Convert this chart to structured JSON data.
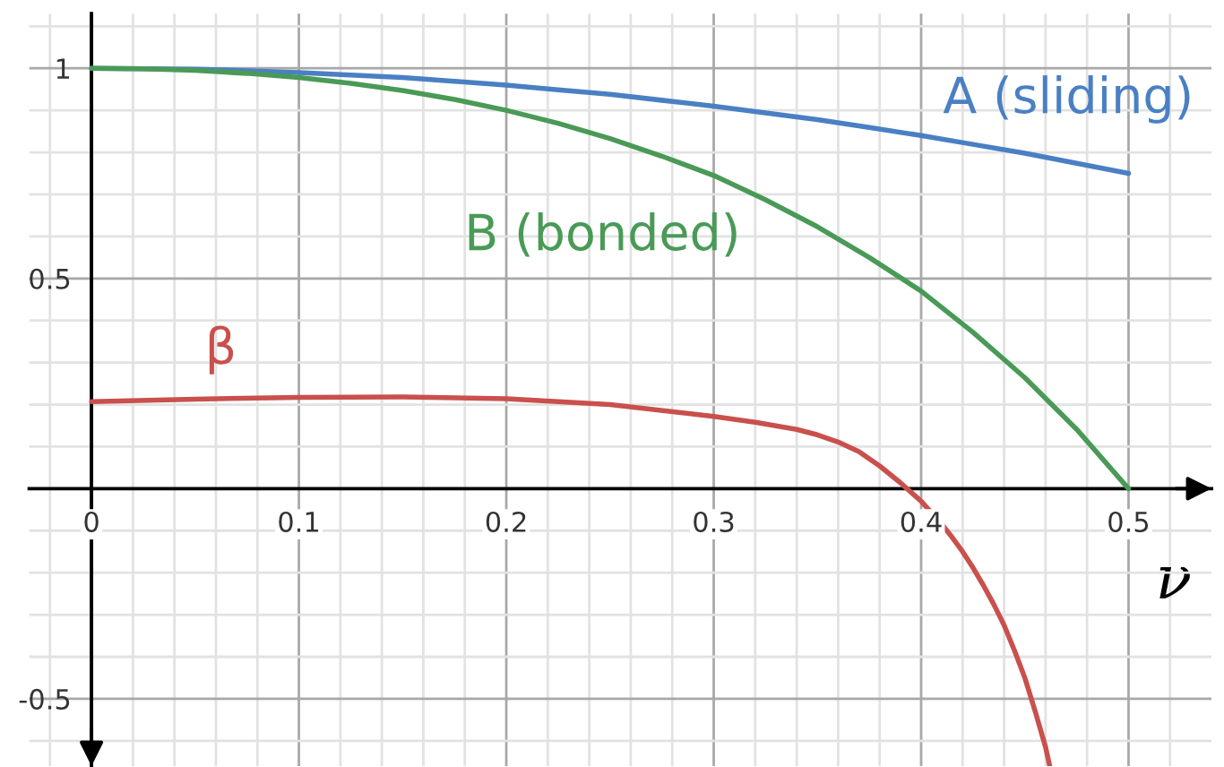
{
  "chart_data": {
    "type": "line",
    "xlabel": "ν",
    "series": [
      {
        "name": "A (sliding)",
        "color": "#4a80c3",
        "x": [
          0,
          0.025,
          0.05,
          0.075,
          0.1,
          0.125,
          0.15,
          0.175,
          0.2,
          0.225,
          0.25,
          0.275,
          0.3,
          0.325,
          0.35,
          0.375,
          0.4,
          0.425,
          0.45,
          0.475,
          0.5
        ],
        "values": [
          1,
          0.999,
          0.998,
          0.994,
          0.99,
          0.984,
          0.978,
          0.969,
          0.96,
          0.949,
          0.938,
          0.924,
          0.91,
          0.894,
          0.878,
          0.859,
          0.84,
          0.819,
          0.798,
          0.774,
          0.75
        ]
      },
      {
        "name": "B (bonded)",
        "color": "#4a9a57",
        "x": [
          0,
          0.025,
          0.05,
          0.075,
          0.1,
          0.125,
          0.15,
          0.175,
          0.2,
          0.225,
          0.25,
          0.275,
          0.3,
          0.325,
          0.35,
          0.375,
          0.4,
          0.425,
          0.45,
          0.475,
          0.5
        ],
        "values": [
          1,
          0.999,
          0.995,
          0.988,
          0.978,
          0.964,
          0.947,
          0.926,
          0.9,
          0.869,
          0.833,
          0.791,
          0.745,
          0.687,
          0.623,
          0.55,
          0.47,
          0.372,
          0.264,
          0.141,
          0
        ]
      },
      {
        "name": "β",
        "color": "#c9504c",
        "x": [
          0,
          0.05,
          0.1,
          0.15,
          0.2,
          0.25,
          0.3,
          0.32,
          0.34,
          0.35,
          0.36,
          0.37,
          0.38,
          0.39,
          0.4,
          0.41,
          0.415,
          0.42,
          0.425,
          0.43,
          0.435,
          0.44,
          0.445,
          0.45,
          0.455,
          0.46,
          0.462
        ],
        "values": [
          0.207,
          0.213,
          0.217,
          0.218,
          0.214,
          0.2,
          0.172,
          0.158,
          0.141,
          0.128,
          0.111,
          0.088,
          0.054,
          0.014,
          -0.03,
          -0.085,
          -0.116,
          -0.15,
          -0.188,
          -0.23,
          -0.275,
          -0.325,
          -0.385,
          -0.45,
          -0.53,
          -0.615,
          -0.66
        ]
      }
    ],
    "xlim": [
      -0.03,
      0.54
    ],
    "ylim": [
      -0.66,
      1.13
    ],
    "xticks": [
      {
        "value": -0.02,
        "label": null
      },
      0,
      {
        "value": 0.02,
        "label": null
      },
      {
        "value": 0.04,
        "label": null
      },
      {
        "value": 0.06,
        "label": null
      },
      {
        "value": 0.08,
        "label": null
      },
      0.1,
      {
        "value": 0.12,
        "label": null
      },
      {
        "value": 0.14,
        "label": null
      },
      {
        "value": 0.16,
        "label": null
      },
      {
        "value": 0.18,
        "label": null
      },
      0.2,
      {
        "value": 0.22,
        "label": null
      },
      {
        "value": 0.24,
        "label": null
      },
      {
        "value": 0.26,
        "label": null
      },
      {
        "value": 0.28,
        "label": null
      },
      0.3,
      {
        "value": 0.32,
        "label": null
      },
      {
        "value": 0.34,
        "label": null
      },
      {
        "value": 0.36,
        "label": null
      },
      {
        "value": 0.38,
        "label": null
      },
      0.4,
      {
        "value": 0.42,
        "label": null
      },
      {
        "value": 0.44,
        "label": null
      },
      {
        "value": 0.46,
        "label": null
      },
      {
        "value": 0.48,
        "label": null
      },
      0.5,
      {
        "value": 0.52,
        "label": null
      }
    ],
    "yticks": [
      {
        "value": -0.6,
        "label": null
      },
      -0.5,
      {
        "value": -0.4,
        "label": null
      },
      {
        "value": -0.3,
        "label": null
      },
      {
        "value": -0.2,
        "label": null
      },
      {
        "value": -0.1,
        "label": null
      },
      {
        "value": 0,
        "label": null
      },
      {
        "value": 0.1,
        "label": null
      },
      {
        "value": 0.2,
        "label": null
      },
      {
        "value": 0.3,
        "label": null
      },
      {
        "value": 0.4,
        "label": null
      },
      0.5,
      {
        "value": 0.6,
        "label": null
      },
      {
        "value": 0.7,
        "label": null
      },
      {
        "value": 0.8,
        "label": null
      },
      {
        "value": 0.9,
        "label": null
      },
      1,
      {
        "value": 1.1,
        "label": null
      }
    ],
    "grid": true
  }
}
